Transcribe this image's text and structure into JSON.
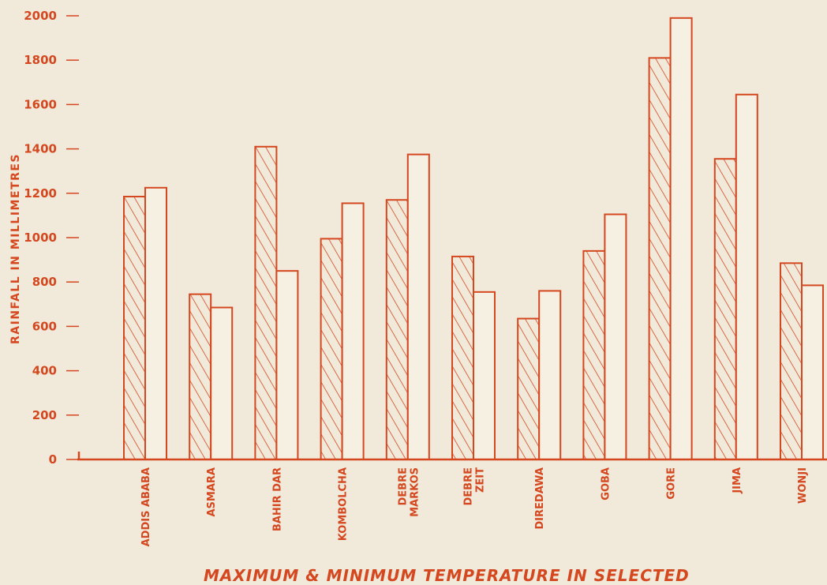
{
  "chart_data": {
    "type": "bar",
    "title": "MAXIMUM & MINIMUM TEMPERATURE IN SELECTED",
    "xlabel": "",
    "ylabel": "RAINFALL IN MILLIMETRES",
    "ylim": [
      0,
      2000
    ],
    "yticks": [
      0,
      200,
      400,
      600,
      800,
      1000,
      1200,
      1400,
      1600,
      1800,
      2000
    ],
    "grid": false,
    "legend": "none",
    "categories": [
      [
        "ADDIS ABABA"
      ],
      [
        "ASMARA"
      ],
      [
        "BAHIR DAR"
      ],
      [
        "KOMBOLCHA"
      ],
      [
        "DEBRE",
        "MARKOS"
      ],
      [
        "DEBRE",
        "ZEIT"
      ],
      [
        "DIREDAWA"
      ],
      [
        "GOBA"
      ],
      [
        "GORE"
      ],
      [
        "JIMA"
      ],
      [
        "WONJI"
      ]
    ],
    "series": [
      {
        "style": "hatched",
        "values": [
          1185,
          745,
          1410,
          995,
          1170,
          915,
          635,
          940,
          1810,
          1355,
          885
        ]
      },
      {
        "style": "plain",
        "values": [
          1225,
          685,
          850,
          1155,
          1375,
          755,
          760,
          1105,
          1990,
          1645,
          785
        ]
      }
    ],
    "colors": {
      "ink": "#d4471f",
      "paper": "#f1eadb"
    }
  }
}
